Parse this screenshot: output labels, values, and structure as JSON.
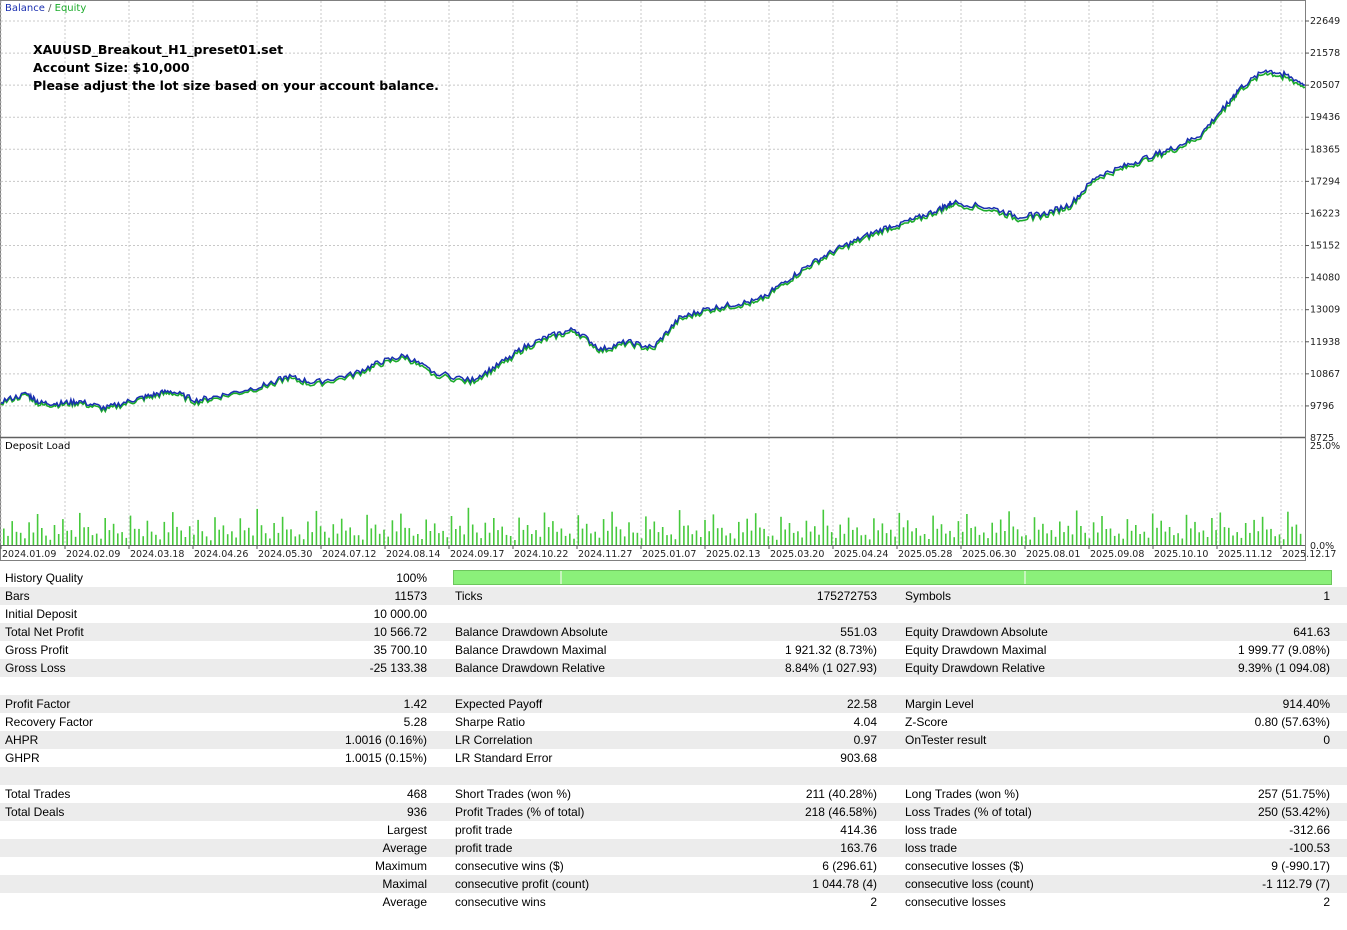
{
  "legend": {
    "balance": "Balance",
    "separator": " / ",
    "equity": "Equity"
  },
  "notes": {
    "line1": "XAUUSD_Breakout_H1_preset01.set",
    "line2": "Account Size: $10,000",
    "line3": "Please adjust the lot size based on your account balance."
  },
  "colors": {
    "balance": "#1a2fb0",
    "equity": "#1bab2a",
    "load_bar": "#46c93c",
    "grid": "#c8c8c8",
    "quality_bar": "#8bf07a"
  },
  "chart_data": [
    {
      "type": "line",
      "legend": [
        "Balance",
        "Equity"
      ],
      "y_ticks": [
        9796,
        10867,
        11938,
        13009,
        14080,
        15152,
        16223,
        17294,
        18365,
        19436,
        20507,
        21578,
        22649
      ],
      "y_bottom_label": "8725",
      "ylim": [
        8725,
        22649
      ],
      "x_ticks": [
        "2024.01.09",
        "2024.02.09",
        "2024.03.18",
        "2024.04.26",
        "2024.05.30",
        "2024.07.12",
        "2024.08.14",
        "2024.09.17",
        "2024.10.22",
        "2024.11.27",
        "2025.01.07",
        "2025.02.13",
        "2025.03.20",
        "2025.04.24",
        "2025.05.28",
        "2025.06.30",
        "2025.08.01",
        "2025.09.08",
        "2025.10.10",
        "2025.11.12",
        "2025.12.17"
      ],
      "series": [
        {
          "name": "Balance",
          "x": [
            0,
            0.02,
            0.03,
            0.045,
            0.06,
            0.08,
            0.1,
            0.115,
            0.13,
            0.15,
            0.17,
            0.2,
            0.22,
            0.24,
            0.27,
            0.29,
            0.31,
            0.33,
            0.36,
            0.38,
            0.4,
            0.42,
            0.44,
            0.46,
            0.48,
            0.5,
            0.52,
            0.54,
            0.56,
            0.58,
            0.6,
            0.62,
            0.64,
            0.66,
            0.68,
            0.7,
            0.72,
            0.73,
            0.76,
            0.78,
            0.8,
            0.82,
            0.84,
            0.86,
            0.88,
            0.9,
            0.92,
            0.94,
            0.95,
            0.97,
            0.985,
            1.0
          ],
          "y": [
            9950,
            10200,
            9900,
            9880,
            9950,
            9720,
            9980,
            10150,
            10300,
            9980,
            10160,
            10460,
            10780,
            10570,
            10860,
            11250,
            11480,
            10960,
            10640,
            11130,
            11740,
            12120,
            12360,
            11680,
            11940,
            11740,
            12720,
            13020,
            13180,
            13310,
            13910,
            14520,
            15010,
            15410,
            15780,
            16020,
            16380,
            16600,
            16410,
            16120,
            16210,
            16530,
            17460,
            17780,
            18120,
            18420,
            18860,
            19890,
            20410,
            21020,
            20860,
            20520
          ]
        },
        {
          "name": "Equity",
          "x": [
            0,
            0.02,
            0.03,
            0.045,
            0.06,
            0.08,
            0.1,
            0.115,
            0.13,
            0.15,
            0.17,
            0.2,
            0.22,
            0.24,
            0.27,
            0.29,
            0.31,
            0.33,
            0.36,
            0.38,
            0.4,
            0.42,
            0.44,
            0.46,
            0.48,
            0.5,
            0.52,
            0.54,
            0.56,
            0.58,
            0.6,
            0.62,
            0.64,
            0.66,
            0.68,
            0.7,
            0.72,
            0.73,
            0.76,
            0.78,
            0.8,
            0.82,
            0.84,
            0.86,
            0.88,
            0.9,
            0.92,
            0.94,
            0.95,
            0.97,
            0.985,
            1.0
          ],
          "y": [
            9900,
            10150,
            9820,
            9830,
            9890,
            9650,
            9920,
            10090,
            10240,
            9900,
            10100,
            10400,
            10710,
            10490,
            10790,
            11170,
            11410,
            10870,
            10560,
            11050,
            11660,
            12040,
            12280,
            11610,
            11870,
            11660,
            12650,
            12950,
            13110,
            13230,
            13840,
            14440,
            14940,
            15330,
            15700,
            15940,
            16310,
            16520,
            16330,
            16030,
            16130,
            16450,
            17380,
            17700,
            18040,
            18340,
            18780,
            19800,
            20330,
            20930,
            20760,
            20440
          ]
        }
      ]
    },
    {
      "type": "bar",
      "title": "Deposit Load",
      "y_top_label": "25.0%",
      "y_bottom_label": "0.0%",
      "ylim": [
        0,
        25
      ],
      "values": [
        4.2,
        6.1,
        3.1,
        5.8,
        7.9,
        2.4,
        5.1,
        6.6,
        3.8,
        8.2,
        4.6,
        2.9,
        6.9,
        5.4,
        3.3,
        7.5,
        4.1,
        6.2,
        2.6,
        5.9,
        8.4,
        3.7,
        4.8,
        6.4,
        2.2,
        7.1,
        5.0,
        3.5,
        6.8,
        4.4,
        9.2,
        3.0,
        5.6,
        7.2,
        4.0,
        2.7,
        6.0,
        8.7,
        3.4,
        5.3,
        6.7,
        4.5,
        2.5,
        7.7,
        5.2,
        3.9,
        6.3,
        8.0,
        4.3,
        2.8,
        6.5,
        5.5,
        3.6,
        7.4,
        4.9,
        9.5,
        3.2,
        5.7,
        6.9,
        4.7,
        2.3,
        7.0,
        5.1,
        3.8,
        8.3,
        6.1,
        4.2,
        2.9,
        7.6,
        5.4,
        3.4,
        6.6,
        8.5,
        4.0,
        5.8,
        3.1,
        7.3,
        6.0,
        4.6,
        2.7,
        8.9,
        5.0,
        3.7,
        6.4,
        7.8,
        4.4,
        3.0,
        5.9,
        6.7,
        8.1,
        4.1,
        2.4,
        7.2,
        5.6,
        3.5,
        6.2,
        4.8,
        9.0,
        3.3,
        5.2,
        7.0,
        4.5,
        2.6,
        6.8,
        5.5,
        3.9,
        8.2,
        6.3,
        4.3,
        2.8,
        7.5,
        5.3,
        3.6,
        6.1,
        7.9,
        4.7,
        3.2,
        5.7,
        6.5,
        8.6,
        4.0,
        2.5,
        7.1,
        5.4,
        3.8,
        6.0,
        4.9,
        8.8,
        3.1,
        5.8,
        7.4,
        4.2,
        2.9,
        6.6,
        5.1,
        3.4,
        8.0,
        6.2,
        4.6,
        3.0,
        7.7,
        5.9,
        3.7,
        6.9,
        8.3,
        4.4,
        3.3,
        5.6,
        6.4,
        7.2,
        4.1,
        2.7,
        8.5,
        5.2
      ]
    }
  ],
  "deposit_load_label": "Deposit Load",
  "quality_progress": 1.0,
  "stats": {
    "rows": [
      {
        "shade": false,
        "l1": "History Quality",
        "v1": "100%",
        "bar": true
      },
      {
        "shade": true,
        "l1": "Bars",
        "v1": "11573",
        "l2": "Ticks",
        "v2": "175272753",
        "l3": "Symbols",
        "v3": "1"
      },
      {
        "shade": false,
        "l1": "Initial Deposit",
        "v1": "10 000.00"
      },
      {
        "shade": true,
        "l1": "Total Net Profit",
        "v1": "10 566.72",
        "l2": "Balance Drawdown Absolute",
        "v2": "551.03",
        "l3": "Equity Drawdown Absolute",
        "v3": "641.63"
      },
      {
        "shade": false,
        "l1": "Gross Profit",
        "v1": "35 700.10",
        "l2": "Balance Drawdown Maximal",
        "v2": "1 921.32 (8.73%)",
        "l3": "Equity Drawdown Maximal",
        "v3": "1 999.77 (9.08%)"
      },
      {
        "shade": true,
        "l1": "Gross Loss",
        "v1": "-25 133.38",
        "l2": "Balance Drawdown Relative",
        "v2": "8.84% (1 027.93)",
        "l3": "Equity Drawdown Relative",
        "v3": "9.39% (1 094.08)"
      },
      {
        "shade": false,
        "blank": true
      },
      {
        "shade": true,
        "l1": "Profit Factor",
        "v1": "1.42",
        "l2": "Expected Payoff",
        "v2": "22.58",
        "l3": "Margin Level",
        "v3": "914.40%"
      },
      {
        "shade": false,
        "l1": "Recovery Factor",
        "v1": "5.28",
        "l2": "Sharpe Ratio",
        "v2": "4.04",
        "l3": "Z-Score",
        "v3": "0.80 (57.63%)"
      },
      {
        "shade": true,
        "l1": "AHPR",
        "v1": "1.0016 (0.16%)",
        "l2": "LR Correlation",
        "v2": "0.97",
        "l3": "OnTester result",
        "v3": "0"
      },
      {
        "shade": false,
        "l1": "GHPR",
        "v1": "1.0015 (0.15%)",
        "l2": "LR Standard Error",
        "v2": "903.68"
      },
      {
        "shade": true,
        "blank": true
      },
      {
        "shade": false,
        "l1": "Total Trades",
        "v1": "468",
        "l2": "Short Trades (won %)",
        "v2": "211 (40.28%)",
        "l3": "Long Trades (won %)",
        "v3": "257 (51.75%)"
      },
      {
        "shade": true,
        "l1": "Total Deals",
        "v1": "936",
        "l2": "Profit Trades (% of total)",
        "v2": "218 (46.58%)",
        "l3": "Loss Trades (% of total)",
        "v3": "250 (53.42%)"
      },
      {
        "shade": false,
        "v1": "Largest",
        "l2": "profit trade",
        "v2": "414.36",
        "l3": "loss trade",
        "v3": "-312.66"
      },
      {
        "shade": true,
        "v1": "Average",
        "l2": "profit trade",
        "v2": "163.76",
        "l3": "loss trade",
        "v3": "-100.53"
      },
      {
        "shade": false,
        "v1": "Maximum",
        "l2": "consecutive wins ($)",
        "v2": "6 (296.61)",
        "l3": "consecutive losses ($)",
        "v3": "9 (-990.17)"
      },
      {
        "shade": true,
        "v1": "Maximal",
        "l2": "consecutive profit (count)",
        "v2": "1 044.78 (4)",
        "l3": "consecutive loss (count)",
        "v3": "-1 112.79 (7)"
      },
      {
        "shade": false,
        "v1": "Average",
        "l2": "consecutive wins",
        "v2": "2",
        "l3": "consecutive losses",
        "v3": "2"
      }
    ]
  }
}
